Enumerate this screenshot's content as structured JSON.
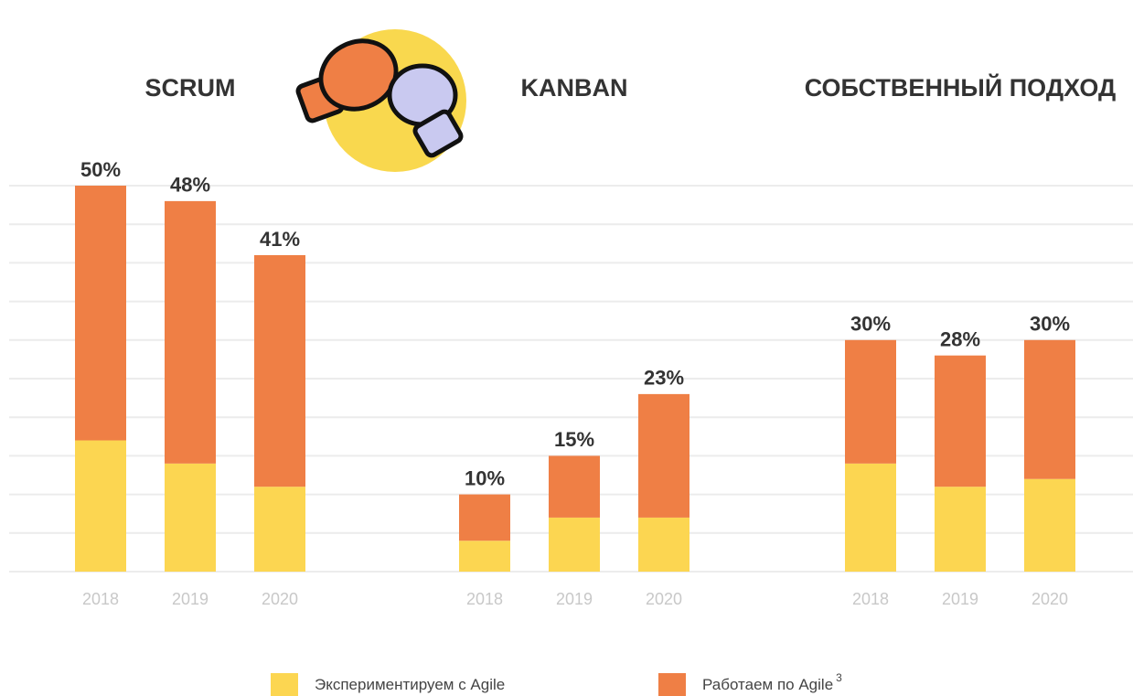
{
  "chart_data": {
    "type": "bar",
    "stacked": true,
    "groups": [
      {
        "title": "SCRUM",
        "categories": [
          "2018",
          "2019",
          "2020"
        ]
      },
      {
        "title": "KANBAN",
        "categories": [
          "2018",
          "2019",
          "2020"
        ]
      },
      {
        "title": "СОБСТВЕННЫЙ ПОДХОД",
        "categories": [
          "2018",
          "2019",
          "2020"
        ]
      }
    ],
    "series": [
      {
        "name": "Экспериментируем с Agile",
        "color": "#fcd651",
        "values": [
          [
            17,
            14,
            11
          ],
          [
            4,
            7,
            7
          ],
          [
            14,
            11,
            12
          ]
        ]
      },
      {
        "name": "Работаем по Agile",
        "footnote": "3",
        "color": "#ef7f45",
        "values": [
          [
            33,
            34,
            30
          ],
          [
            6,
            8,
            16
          ],
          [
            16,
            17,
            18
          ]
        ]
      }
    ],
    "totals": [
      [
        50,
        48,
        41
      ],
      [
        10,
        15,
        23
      ],
      [
        30,
        28,
        30
      ]
    ],
    "total_labels": [
      [
        "50%",
        "48%",
        "41%"
      ],
      [
        "10%",
        "15%",
        "23%"
      ],
      [
        "30%",
        "28%",
        "30%"
      ]
    ],
    "ylim": [
      0,
      50
    ],
    "yticks": [
      0,
      5,
      10,
      15,
      20,
      25,
      30,
      35,
      40,
      45,
      50
    ],
    "grid": true
  }
}
